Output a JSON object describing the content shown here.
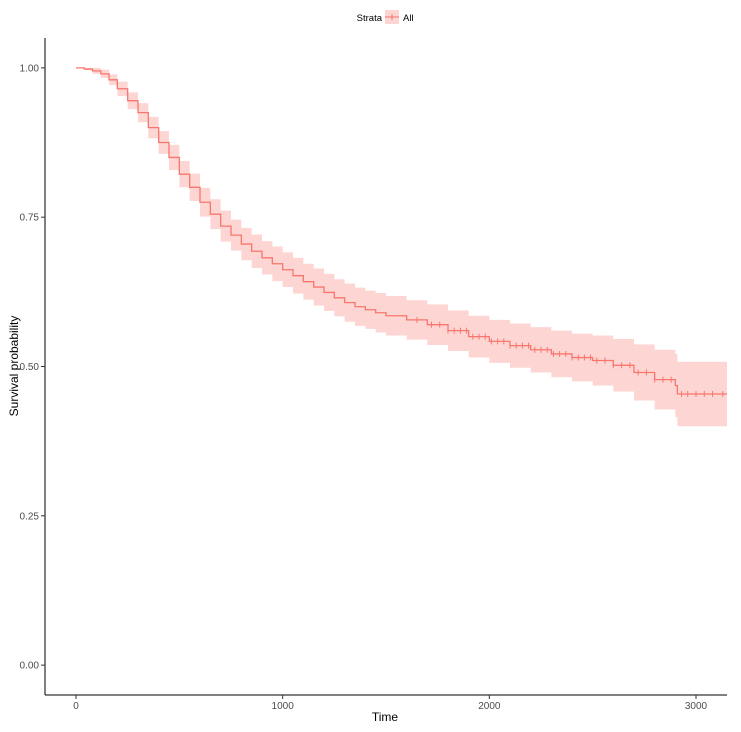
{
  "chart_data": {
    "type": "line",
    "title": "",
    "xlabel": "Time",
    "ylabel": "Survival probability",
    "xlim": [
      -150,
      3150
    ],
    "ylim": [
      -0.05,
      1.05
    ],
    "x_ticks": [
      0,
      1000,
      2000,
      3000
    ],
    "x_tick_labels": [
      "0",
      "1000",
      "2000",
      "3000"
    ],
    "y_ticks": [
      0,
      0.25,
      0.5,
      0.75,
      1.0
    ],
    "y_tick_labels": [
      "0.00",
      "0.25",
      "0.50",
      "0.75",
      "1.00"
    ],
    "grid": false,
    "legend": {
      "title": "Strata",
      "placement": "top-center",
      "entries": [
        "All"
      ]
    },
    "colors": {
      "line": "#f8766d",
      "band": "#f8766d",
      "axis": "#000000"
    },
    "series": [
      {
        "name": "All",
        "x": [
          0,
          40,
          80,
          120,
          160,
          200,
          250,
          300,
          350,
          400,
          450,
          500,
          550,
          600,
          650,
          700,
          750,
          800,
          850,
          900,
          950,
          1000,
          1050,
          1100,
          1150,
          1200,
          1250,
          1300,
          1350,
          1400,
          1450,
          1500,
          1600,
          1700,
          1800,
          1900,
          2000,
          2100,
          2200,
          2300,
          2400,
          2500,
          2600,
          2700,
          2800,
          2900,
          2910,
          3000,
          3100,
          3150
        ],
        "y": [
          1.0,
          0.998,
          0.995,
          0.99,
          0.98,
          0.965,
          0.945,
          0.925,
          0.9,
          0.875,
          0.85,
          0.822,
          0.8,
          0.775,
          0.755,
          0.735,
          0.72,
          0.705,
          0.693,
          0.682,
          0.672,
          0.662,
          0.652,
          0.642,
          0.633,
          0.624,
          0.615,
          0.607,
          0.6,
          0.595,
          0.59,
          0.585,
          0.578,
          0.57,
          0.56,
          0.55,
          0.542,
          0.535,
          0.528,
          0.521,
          0.515,
          0.51,
          0.502,
          0.49,
          0.478,
          0.468,
          0.454,
          0.454,
          0.454,
          0.454
        ],
        "lower": [
          1.0,
          0.996,
          0.99,
          0.983,
          0.971,
          0.953,
          0.931,
          0.909,
          0.882,
          0.856,
          0.829,
          0.8,
          0.777,
          0.751,
          0.73,
          0.709,
          0.694,
          0.678,
          0.665,
          0.654,
          0.643,
          0.633,
          0.622,
          0.612,
          0.602,
          0.593,
          0.584,
          0.575,
          0.568,
          0.563,
          0.557,
          0.552,
          0.545,
          0.536,
          0.526,
          0.515,
          0.506,
          0.498,
          0.49,
          0.482,
          0.475,
          0.468,
          0.458,
          0.443,
          0.428,
          0.415,
          0.4,
          0.4,
          0.4,
          0.4
        ],
        "upper": [
          1.0,
          1.0,
          1.0,
          0.997,
          0.989,
          0.977,
          0.959,
          0.941,
          0.918,
          0.894,
          0.871,
          0.844,
          0.823,
          0.799,
          0.78,
          0.761,
          0.746,
          0.732,
          0.721,
          0.71,
          0.701,
          0.691,
          0.682,
          0.672,
          0.664,
          0.655,
          0.646,
          0.639,
          0.632,
          0.627,
          0.623,
          0.618,
          0.611,
          0.604,
          0.594,
          0.585,
          0.578,
          0.572,
          0.566,
          0.56,
          0.555,
          0.552,
          0.546,
          0.537,
          0.528,
          0.521,
          0.508,
          0.508,
          0.508,
          0.508
        ],
        "censor_times": [
          1650,
          1720,
          1760,
          1800,
          1830,
          1860,
          1890,
          1920,
          1950,
          1980,
          2010,
          2040,
          2070,
          2100,
          2130,
          2160,
          2190,
          2220,
          2250,
          2280,
          2310,
          2340,
          2370,
          2400,
          2430,
          2460,
          2490,
          2520,
          2560,
          2600,
          2640,
          2680,
          2720,
          2760,
          2800,
          2840,
          2880,
          2930,
          2960,
          3000,
          3040,
          3080,
          3130
        ]
      }
    ]
  }
}
